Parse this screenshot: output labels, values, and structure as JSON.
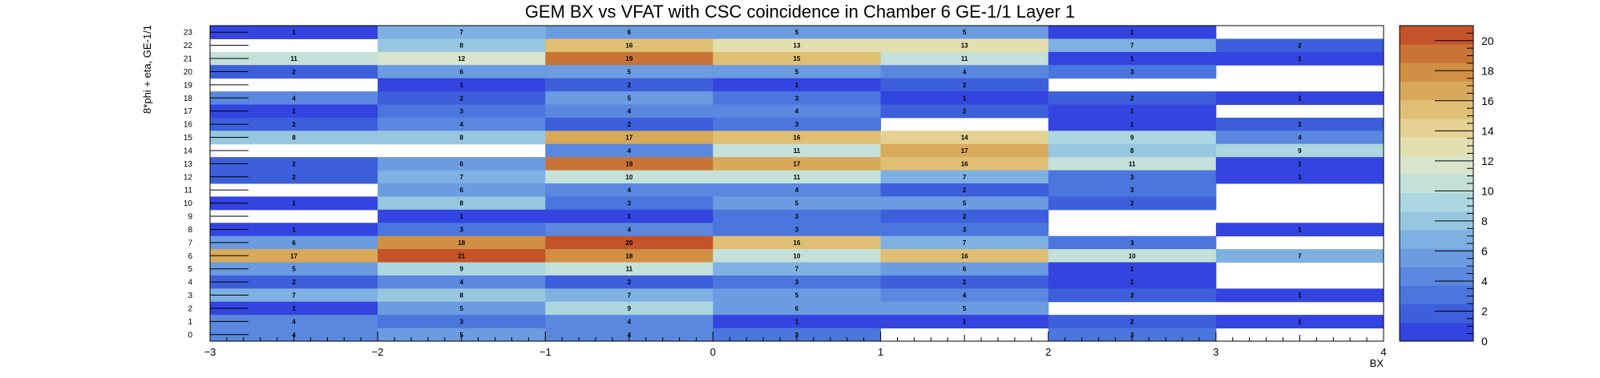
{
  "chart_data": {
    "type": "heatmap",
    "title": "GEM BX vs VFAT with CSC coincidence in Chamber 6 GE-1/1 Layer 1",
    "xlabel": "BX",
    "ylabel": "8*phi + eta, GE-1/1",
    "xlim": [
      -3,
      4
    ],
    "ylim": [
      0,
      24
    ],
    "zlim": [
      0,
      21
    ],
    "x_tick_labels": [
      "−3",
      "−2",
      "−1",
      "0",
      "1",
      "2",
      "3",
      "4"
    ],
    "y_tick_labels": [
      "0",
      "1",
      "2",
      "3",
      "4",
      "5",
      "6",
      "7",
      "8",
      "9",
      "10",
      "11",
      "12",
      "13",
      "14",
      "15",
      "16",
      "17",
      "18",
      "19",
      "20",
      "21",
      "22",
      "23"
    ],
    "colorbar_ticks": [
      0,
      2,
      4,
      6,
      8,
      10,
      12,
      14,
      16,
      18,
      20
    ],
    "colorbar_tick_labels": [
      "0",
      "2",
      "4",
      "6",
      "8",
      "10",
      "12",
      "14",
      "16",
      "18",
      "20"
    ],
    "x_bins": [
      -3,
      -2,
      -1,
      0,
      1,
      2,
      3
    ],
    "bins": [
      [
        1,
        7,
        6,
        5,
        5,
        1,
        0
      ],
      [
        0,
        8,
        16,
        13,
        13,
        7,
        2
      ],
      [
        11,
        12,
        19,
        15,
        11,
        1,
        1
      ],
      [
        2,
        6,
        5,
        5,
        4,
        3,
        0
      ],
      [
        0,
        1,
        2,
        1,
        2,
        0,
        0
      ],
      [
        4,
        2,
        5,
        3,
        1,
        2,
        1
      ],
      [
        1,
        3,
        4,
        4,
        2,
        1,
        0
      ],
      [
        2,
        4,
        2,
        3,
        0,
        1,
        2
      ],
      [
        8,
        8,
        17,
        16,
        14,
        9,
        4
      ],
      [
        0,
        0,
        4,
        11,
        17,
        8,
        9
      ],
      [
        2,
        6,
        19,
        17,
        16,
        11,
        1
      ],
      [
        2,
        7,
        10,
        11,
        7,
        3,
        1
      ],
      [
        0,
        6,
        4,
        4,
        2,
        3,
        0
      ],
      [
        1,
        8,
        3,
        5,
        5,
        2,
        0
      ],
      [
        0,
        1,
        1,
        3,
        2,
        0,
        0
      ],
      [
        1,
        3,
        4,
        3,
        3,
        0,
        1
      ],
      [
        6,
        18,
        20,
        16,
        7,
        3,
        0
      ],
      [
        17,
        21,
        18,
        10,
        16,
        10,
        7
      ],
      [
        5,
        9,
        11,
        7,
        6,
        1,
        0
      ],
      [
        2,
        4,
        2,
        3,
        2,
        1,
        0
      ],
      [
        7,
        8,
        7,
        5,
        4,
        2,
        1
      ],
      [
        1,
        5,
        9,
        6,
        5,
        0,
        0
      ],
      [
        4,
        3,
        4,
        1,
        1,
        2,
        1
      ],
      [
        4,
        5,
        4,
        3,
        0,
        3,
        0
      ]
    ],
    "bins_row_order": "top-to-bottom (y = 23 first, y = 0 last)",
    "palette": [
      "#3344e0",
      "#3d5fdc",
      "#4a76dd",
      "#5a88de",
      "#6b9be0",
      "#7fb0e2",
      "#97c6e0",
      "#acd6e0",
      "#c4e0d8",
      "#d8e4cc",
      "#e3dfae",
      "#e4d193",
      "#e0bf74",
      "#d9a95a",
      "#d08f44",
      "#c97436",
      "#c4532a"
    ]
  }
}
